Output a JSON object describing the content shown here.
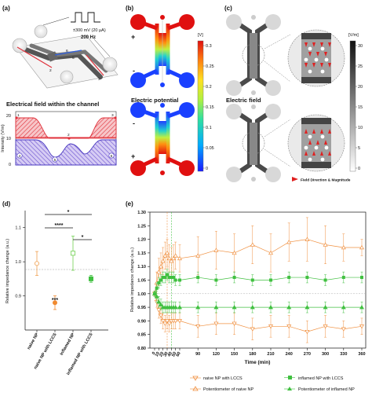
{
  "panel_a": {
    "label": "(a)",
    "signal_amplitude": "±300 mV (20 µA)",
    "signal_freq": "200 Hz",
    "electrode_nums": [
      "1",
      "2",
      "3",
      "4",
      "5",
      "6"
    ],
    "field_title": "Electrical field within the channel",
    "ylabel": "Intensity (V/m)",
    "yticks": [
      "20",
      "10",
      "0"
    ],
    "point_labels_top": [
      "1",
      "2",
      "3"
    ],
    "point_labels_bottom": [
      "4",
      "5",
      "6"
    ],
    "color_top": "#e0303a",
    "color_bottom": "#4a3ac0"
  },
  "panel_b": {
    "label": "(b)",
    "caption": "Electric potential",
    "unit": "[V]",
    "colorbar_ticks": [
      "0.3",
      "0.25",
      "0.2",
      "0.15",
      "0.1",
      "0.05",
      "0"
    ],
    "sign_plus": "+",
    "sign_minus": "-"
  },
  "panel_c": {
    "label": "(c)",
    "caption": "Electric field",
    "unit": "[V/m]",
    "colorbar_ticks": [
      "30",
      "25",
      "20",
      "15",
      "10",
      "5",
      "0"
    ],
    "legend": "Field Direction & Magnitude"
  },
  "panel_d": {
    "label": "(d)",
    "ylabel": "Relative impedance change (a.u.)",
    "yticks": [
      "1.1",
      "1.0",
      "0.9"
    ],
    "significance": [
      "*",
      "****",
      "*"
    ],
    "annotation": "***",
    "categories": [
      "naive NP",
      "naive NP with LCCS",
      "inflamed NP",
      "inflamed NP with LCCS"
    ]
  },
  "panel_e": {
    "label": "(e)",
    "ylabel": "Relative impedance change (a.u.)",
    "xlabel": "Time (min)",
    "yticks": [
      "1.30",
      "1.25",
      "1.20",
      "1.15",
      "1.10",
      "1.05",
      "1.00",
      "0.95",
      "0.90",
      "0.85",
      "0.80"
    ],
    "xticks": [
      "0",
      "10",
      "20",
      "30",
      "40",
      "50",
      "60",
      "90",
      "120",
      "150",
      "180",
      "210",
      "240",
      "270",
      "300",
      "330",
      "360"
    ],
    "legend": [
      "naive NP with LCCS",
      "Potentiometer of naive NP",
      "inflamed NP with LCCS",
      "Potentiometer of inflamed NP"
    ]
  },
  "chart_data": [
    {
      "type": "scatter",
      "panel": "d",
      "categories": [
        "naive NP",
        "naive NP with LCCS",
        "inflamed NP",
        "inflamed NP with LCCS"
      ],
      "values": [
        0.995,
        0.88,
        1.025,
        0.95
      ],
      "errors": [
        0.035,
        0.02,
        0.05,
        0.01
      ],
      "ylabel": "Relative impedance change (a.u.)",
      "ylim": [
        0.8,
        1.15
      ],
      "markers": [
        "open-circle",
        "filled-circle",
        "open-square",
        "filled-square"
      ],
      "colors": [
        "#f0a050",
        "#f08a30",
        "#70d050",
        "#40c040"
      ]
    },
    {
      "type": "line",
      "panel": "e",
      "x": [
        0,
        5,
        10,
        15,
        20,
        25,
        30,
        35,
        40,
        45,
        50,
        60,
        90,
        120,
        150,
        180,
        210,
        240,
        270,
        300,
        330,
        360
      ],
      "xlabel": "Time (min)",
      "ylabel": "Relative impedance change (a.u.)",
      "ylim": [
        0.8,
        1.3
      ],
      "series": [
        {
          "name": "naive NP with LCCS",
          "color": "#f09040",
          "values": [
            1.0,
            0.97,
            0.94,
            0.92,
            0.9,
            0.89,
            0.9,
            0.89,
            0.9,
            0.9,
            0.9,
            0.9,
            0.88,
            0.89,
            0.89,
            0.87,
            0.88,
            0.88,
            0.86,
            0.88,
            0.87,
            0.88
          ],
          "errors": [
            0.01,
            0.02,
            0.03,
            0.03,
            0.03,
            0.03,
            0.03,
            0.03,
            0.03,
            0.03,
            0.03,
            0.03,
            0.04,
            0.04,
            0.04,
            0.04,
            0.04,
            0.04,
            0.04,
            0.04,
            0.03,
            0.03
          ]
        },
        {
          "name": "Potentiometer of naive NP",
          "color": "#f09040",
          "values": [
            1.0,
            1.04,
            1.08,
            1.1,
            1.12,
            1.14,
            1.15,
            1.13,
            1.12,
            1.13,
            1.14,
            1.13,
            1.14,
            1.16,
            1.15,
            1.18,
            1.15,
            1.19,
            1.2,
            1.18,
            1.17,
            1.17
          ],
          "errors": [
            0.01,
            0.04,
            0.05,
            0.05,
            0.05,
            0.05,
            0.05,
            0.05,
            0.05,
            0.05,
            0.05,
            0.05,
            0.07,
            0.07,
            0.07,
            0.07,
            0.07,
            0.07,
            0.08,
            0.07,
            0.05,
            0.03
          ]
        },
        {
          "name": "inflamed NP with LCCS",
          "color": "#40c040",
          "values": [
            1.0,
            1.02,
            1.04,
            1.05,
            1.06,
            1.06,
            1.07,
            1.06,
            1.06,
            1.06,
            1.05,
            1.05,
            1.06,
            1.05,
            1.06,
            1.05,
            1.05,
            1.06,
            1.06,
            1.05,
            1.06,
            1.06
          ],
          "errors": [
            0.01,
            0.02,
            0.02,
            0.02,
            0.02,
            0.02,
            0.02,
            0.02,
            0.02,
            0.02,
            0.02,
            0.02,
            0.02,
            0.02,
            0.02,
            0.02,
            0.02,
            0.02,
            0.02,
            0.02,
            0.02,
            0.02
          ]
        },
        {
          "name": "Potentiometer of inflamed NP",
          "color": "#40c040",
          "values": [
            1.0,
            0.99,
            0.97,
            0.96,
            0.95,
            0.95,
            0.95,
            0.95,
            0.95,
            0.95,
            0.95,
            0.95,
            0.95,
            0.95,
            0.95,
            0.95,
            0.95,
            0.95,
            0.95,
            0.95,
            0.95,
            0.95
          ],
          "errors": [
            0.01,
            0.02,
            0.02,
            0.02,
            0.02,
            0.02,
            0.02,
            0.02,
            0.02,
            0.02,
            0.02,
            0.02,
            0.02,
            0.02,
            0.02,
            0.02,
            0.02,
            0.02,
            0.02,
            0.02,
            0.02,
            0.02
          ]
        }
      ]
    }
  ]
}
